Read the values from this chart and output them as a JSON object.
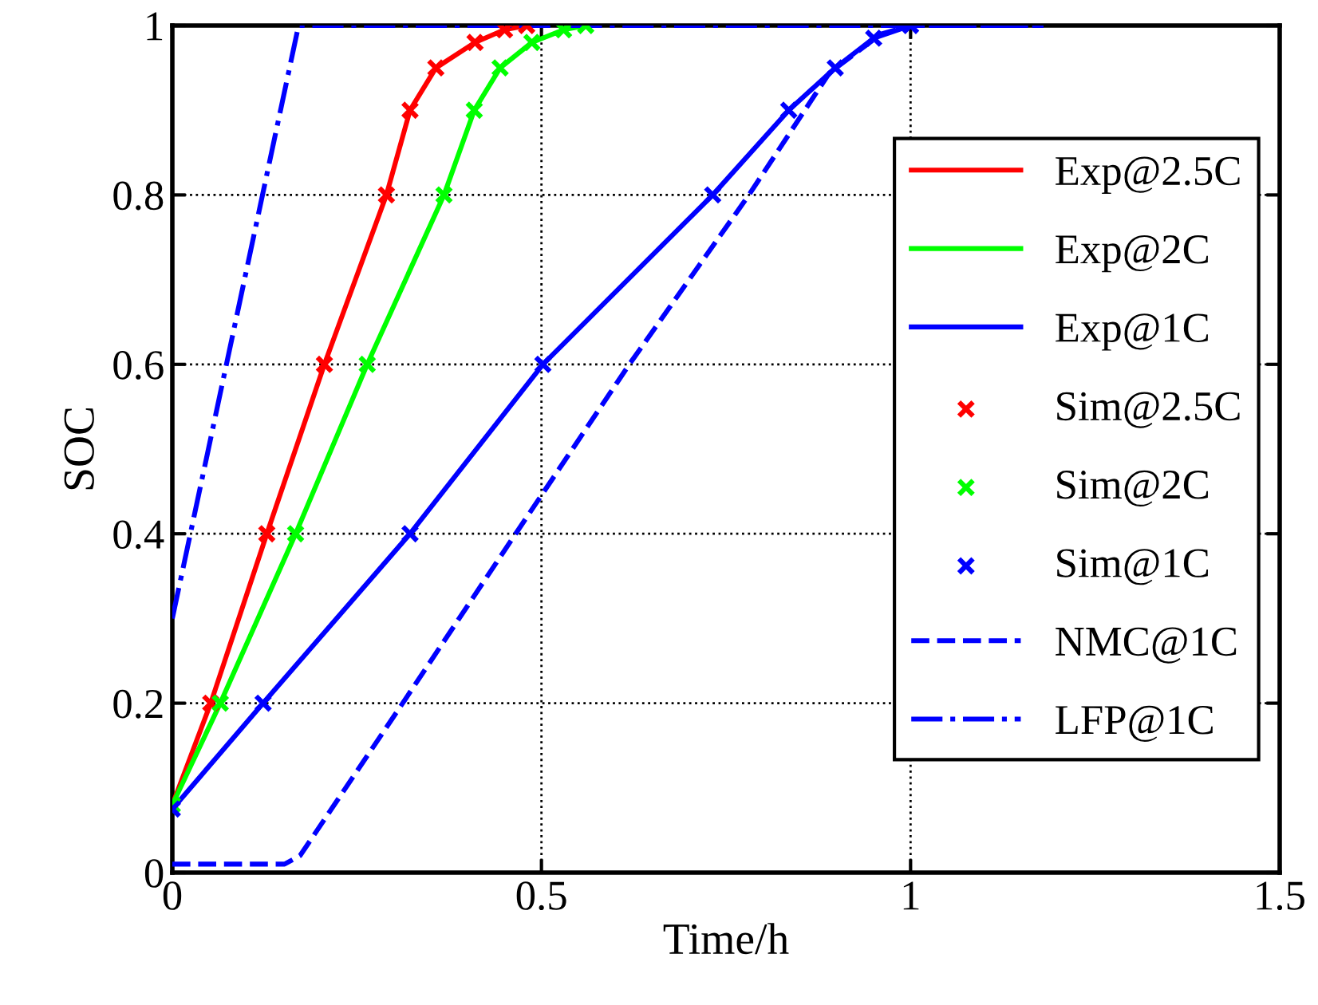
{
  "chart_data": {
    "type": "line",
    "xlabel": "Time/h",
    "ylabel": "SOC",
    "xlim": [
      0,
      1.5
    ],
    "xticks": [
      0,
      0.5,
      1,
      1.5
    ],
    "ylim": [
      0,
      1
    ],
    "yticks": [
      0,
      0.2,
      0.4,
      0.6,
      0.8,
      1
    ],
    "grid": true,
    "legend": "right",
    "series": [
      {
        "name": "Exp@2.5C",
        "line_style": "solid",
        "color": "#ff0000",
        "x": [
          0,
          0.052,
          0.128,
          0.206,
          0.29,
          0.322,
          0.357,
          0.41,
          0.45,
          0.48
        ],
        "values": [
          0.08,
          0.2,
          0.4,
          0.6,
          0.8,
          0.9,
          0.95,
          0.98,
          0.995,
          1.0
        ]
      },
      {
        "name": "Exp@2C",
        "line_style": "solid",
        "color": "#00ff00",
        "x": [
          0,
          0.065,
          0.167,
          0.264,
          0.368,
          0.409,
          0.444,
          0.487,
          0.53,
          0.56
        ],
        "values": [
          0.08,
          0.2,
          0.4,
          0.6,
          0.8,
          0.9,
          0.95,
          0.98,
          0.995,
          1.0
        ]
      },
      {
        "name": "Exp@1C",
        "line_style": "solid",
        "color": "#0000ff",
        "x": [
          0,
          0.123,
          0.322,
          0.502,
          0.732,
          0.835,
          0.898,
          0.95,
          1.0
        ],
        "values": [
          0.075,
          0.2,
          0.4,
          0.6,
          0.8,
          0.9,
          0.95,
          0.985,
          1.0
        ]
      },
      {
        "name": "Sim@2.5C",
        "type": "scatter",
        "marker": "cross",
        "color": "#ff0000",
        "x": [
          0.052,
          0.128,
          0.206,
          0.29,
          0.322,
          0.357,
          0.41,
          0.45,
          0.48
        ],
        "values": [
          0.2,
          0.4,
          0.6,
          0.8,
          0.9,
          0.95,
          0.98,
          0.995,
          1.0
        ]
      },
      {
        "name": "Sim@2C",
        "type": "scatter",
        "marker": "cross",
        "color": "#00ff00",
        "x": [
          0,
          0.065,
          0.167,
          0.264,
          0.368,
          0.409,
          0.444,
          0.487,
          0.53,
          0.56
        ],
        "values": [
          0.08,
          0.2,
          0.4,
          0.6,
          0.8,
          0.9,
          0.95,
          0.98,
          0.995,
          1.0
        ]
      },
      {
        "name": "Sim@1C",
        "type": "scatter",
        "marker": "cross",
        "color": "#0000ff",
        "x": [
          0,
          0.123,
          0.322,
          0.502,
          0.732,
          0.835,
          0.898,
          0.95,
          1.0
        ],
        "values": [
          0.075,
          0.2,
          0.4,
          0.6,
          0.8,
          0.9,
          0.95,
          0.985,
          1.0
        ]
      },
      {
        "name": "NMC@1C",
        "line_style": "dashed",
        "color": "#0000ff",
        "x": [
          0,
          0.152,
          0.173,
          0.312,
          0.465,
          0.619,
          0.781,
          0.89,
          0.96,
          1.0,
          1.18
        ],
        "values": [
          0.01,
          0.01,
          0.02,
          0.2,
          0.4,
          0.6,
          0.8,
          0.944,
          0.99,
          1.0,
          1.0
        ]
      },
      {
        "name": "LFP@1C",
        "line_style": "dashdot",
        "color": "#0000ff",
        "x": [
          0,
          0.171,
          1.18
        ],
        "values": [
          0.3,
          1.0,
          1.0
        ]
      }
    ]
  }
}
